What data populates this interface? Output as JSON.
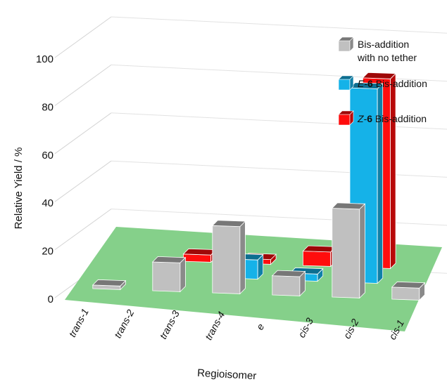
{
  "chart_data": {
    "type": "bar",
    "subtype": "3d-grouped-bar",
    "categories": [
      "trans-1",
      "trans-2",
      "trans-3",
      "trans-4",
      "e",
      "cis-3",
      "cis-2",
      "cis-1"
    ],
    "ylabel": "Relative Yield / %",
    "xlabel": "Regioisomer",
    "yticks": [
      "0",
      "20",
      "40",
      "60",
      "80",
      "100"
    ],
    "ylim": [
      0,
      100
    ],
    "grid": true,
    "floor_color": "#85d08a",
    "legend_position": "top-right",
    "series": [
      {
        "name": "Bis-addition with no tether",
        "legend_line1": "Bis-addition",
        "legend_line2": "with no tether",
        "color": "#c0c0c0",
        "values": [
          1.5,
          12,
          28,
          8,
          37,
          5,
          2,
          0
        ]
      },
      {
        "name": "E-6 Bis-addition",
        "legend_prefix": "E",
        "legend_sep": "-",
        "legend_bold": "6",
        "legend_suffix": " Bis-addition",
        "color": "#15b2e8",
        "values": [
          0,
          0,
          8,
          3,
          81,
          0,
          0,
          0
        ]
      },
      {
        "name": "Z-6 Bis-addition",
        "legend_prefix": "Z",
        "legend_sep": "-",
        "legend_bold": "6",
        "legend_suffix": " Bis-addition",
        "color": "#ff0d0d",
        "values": [
          0,
          3,
          2,
          6,
          79,
          0,
          10,
          0
        ]
      }
    ]
  }
}
